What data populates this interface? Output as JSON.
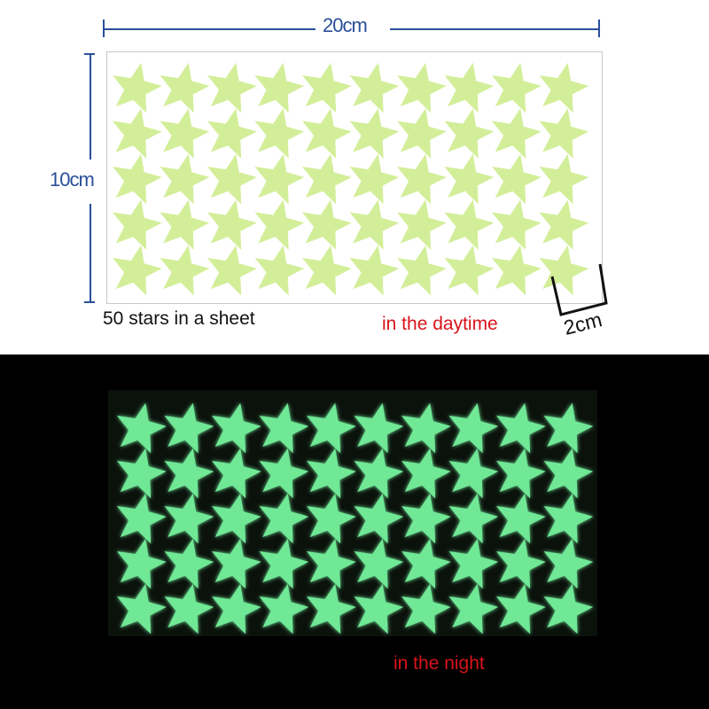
{
  "dimensions": {
    "width_label": "20cm",
    "height_label": "10cm",
    "star_size_label": "2cm"
  },
  "captions": {
    "count": "50 stars in a sheet",
    "day": "in the daytime",
    "night": "in the night"
  },
  "colors": {
    "day_star": "#d3ee99",
    "night_star": "#6fe896",
    "dimension_line": "#2a4f9a",
    "caption_red": "#d8141b",
    "night_background": "#000000"
  }
}
